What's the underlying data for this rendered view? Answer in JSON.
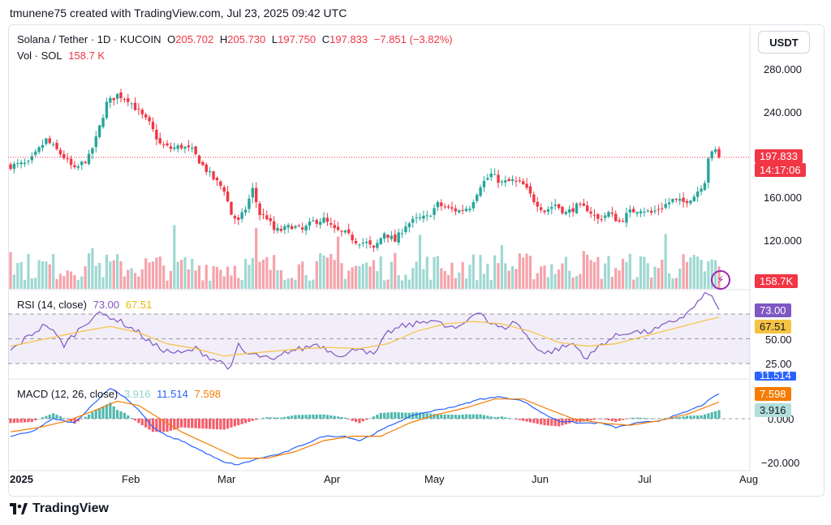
{
  "header": {
    "credit": "tmunene75 created with TradingView.com, Jul 23, 2025 09:42 UTC"
  },
  "price_legend": {
    "symbol": "Solana / Tether · 1D · KUCOIN",
    "o_label": "O",
    "o_val": "205.702",
    "h_label": "H",
    "h_val": "205.730",
    "l_label": "L",
    "l_val": "197.750",
    "c_label": "C",
    "c_val": "197.833",
    "change": "−7.851 (−3.82%)",
    "vol_label": "Vol · SOL",
    "vol_val": "158.7 K"
  },
  "currency_button": "USDT",
  "rsi_legend": {
    "label": "RSI (14, close)",
    "rsi_val": "73.00",
    "sma_val": "67.51"
  },
  "macd_legend": {
    "label": "MACD (12, 26, close)",
    "hist_val": "3.916",
    "macd_val": "11.514",
    "signal_val": "7.598"
  },
  "price_axis": [
    "280.000",
    "240.000",
    "160.000",
    "120.000"
  ],
  "rsi_axis": [
    "50.00",
    "25.00"
  ],
  "macd_axis": [
    "0.000",
    "−20.000"
  ],
  "time_axis": [
    "2025",
    "Feb",
    "Mar",
    "Apr",
    "May",
    "Jun",
    "Jul",
    "Aug"
  ],
  "tags": {
    "price": "197.833",
    "countdown": "14:17:06",
    "volume": "158.7K",
    "rsi": "73.00",
    "rsi_sma": "67.51",
    "macd": "11.514",
    "signal": "7.598",
    "hist": "3.916"
  },
  "footer": {
    "brand": "TradingView"
  },
  "colors": {
    "up": "#26a69a",
    "down": "#f23645",
    "rsi": "#7e57c2",
    "sma": "#f5c242",
    "macd": "#2962ff",
    "signal": "#f57c00"
  },
  "chart_data": {
    "type": "candlestick",
    "price_anchors": [
      [
        0,
        190
      ],
      [
        5,
        192
      ],
      [
        10,
        214
      ],
      [
        15,
        198
      ],
      [
        18,
        186
      ],
      [
        22,
        198
      ],
      [
        24,
        215
      ],
      [
        27,
        248
      ],
      [
        30,
        256
      ],
      [
        33,
        252
      ],
      [
        36,
        240
      ],
      [
        39,
        229
      ],
      [
        42,
        210
      ],
      [
        45,
        206
      ],
      [
        48,
        208
      ],
      [
        51,
        204
      ],
      [
        54,
        190
      ],
      [
        57,
        178
      ],
      [
        60,
        168
      ],
      [
        62,
        145
      ],
      [
        64,
        138
      ],
      [
        66,
        150
      ],
      [
        68,
        168
      ],
      [
        70,
        145
      ],
      [
        72,
        142
      ],
      [
        74,
        130
      ],
      [
        76,
        130
      ],
      [
        79,
        134
      ],
      [
        82,
        130
      ],
      [
        85,
        138
      ],
      [
        88,
        140
      ],
      [
        91,
        130
      ],
      [
        94,
        127
      ],
      [
        97,
        120
      ],
      [
        100,
        118
      ],
      [
        102,
        112
      ],
      [
        105,
        128
      ],
      [
        108,
        120
      ],
      [
        111,
        135
      ],
      [
        114,
        140
      ],
      [
        117,
        142
      ],
      [
        120,
        154
      ],
      [
        123,
        150
      ],
      [
        126,
        148
      ],
      [
        129,
        152
      ],
      [
        132,
        172
      ],
      [
        135,
        182
      ],
      [
        138,
        174
      ],
      [
        141,
        176
      ],
      [
        144,
        172
      ],
      [
        147,
        158
      ],
      [
        150,
        148
      ],
      [
        153,
        154
      ],
      [
        156,
        146
      ],
      [
        159,
        152
      ],
      [
        162,
        150
      ],
      [
        165,
        140
      ],
      [
        168,
        146
      ],
      [
        171,
        138
      ],
      [
        174,
        147
      ],
      [
        177,
        150
      ],
      [
        180,
        146
      ],
      [
        183,
        152
      ],
      [
        186,
        158
      ],
      [
        189,
        156
      ],
      [
        192,
        162
      ],
      [
        195,
        176
      ],
      [
        196,
        198
      ],
      [
        198,
        204
      ],
      [
        199,
        197.833
      ]
    ],
    "rsi_anchors": [
      [
        0,
        40
      ],
      [
        5,
        52
      ],
      [
        10,
        62
      ],
      [
        15,
        45
      ],
      [
        20,
        60
      ],
      [
        24,
        70
      ],
      [
        28,
        68
      ],
      [
        32,
        62
      ],
      [
        36,
        55
      ],
      [
        40,
        45
      ],
      [
        44,
        40
      ],
      [
        48,
        38
      ],
      [
        52,
        42
      ],
      [
        56,
        35
      ],
      [
        60,
        30
      ],
      [
        62,
        26
      ],
      [
        64,
        45
      ],
      [
        66,
        38
      ],
      [
        70,
        36
      ],
      [
        74,
        32
      ],
      [
        78,
        40
      ],
      [
        82,
        42
      ],
      [
        86,
        46
      ],
      [
        90,
        40
      ],
      [
        94,
        36
      ],
      [
        98,
        44
      ],
      [
        102,
        36
      ],
      [
        106,
        55
      ],
      [
        110,
        60
      ],
      [
        114,
        62
      ],
      [
        118,
        66
      ],
      [
        122,
        60
      ],
      [
        126,
        58
      ],
      [
        130,
        70
      ],
      [
        132,
        73
      ],
      [
        134,
        64
      ],
      [
        138,
        58
      ],
      [
        142,
        64
      ],
      [
        146,
        48
      ],
      [
        150,
        38
      ],
      [
        154,
        42
      ],
      [
        158,
        46
      ],
      [
        162,
        34
      ],
      [
        166,
        46
      ],
      [
        170,
        52
      ],
      [
        174,
        56
      ],
      [
        178,
        55
      ],
      [
        182,
        58
      ],
      [
        186,
        64
      ],
      [
        190,
        70
      ],
      [
        194,
        82
      ],
      [
        196,
        88
      ],
      [
        199,
        73
      ]
    ],
    "rsi_sma_anchors": [
      [
        0,
        44
      ],
      [
        10,
        50
      ],
      [
        20,
        56
      ],
      [
        28,
        60
      ],
      [
        36,
        55
      ],
      [
        44,
        46
      ],
      [
        52,
        42
      ],
      [
        60,
        36
      ],
      [
        66,
        38
      ],
      [
        74,
        40
      ],
      [
        82,
        42
      ],
      [
        90,
        43
      ],
      [
        98,
        42
      ],
      [
        106,
        46
      ],
      [
        114,
        56
      ],
      [
        122,
        62
      ],
      [
        130,
        64
      ],
      [
        138,
        62
      ],
      [
        146,
        56
      ],
      [
        154,
        47
      ],
      [
        162,
        44
      ],
      [
        170,
        46
      ],
      [
        178,
        52
      ],
      [
        186,
        58
      ],
      [
        194,
        64
      ],
      [
        199,
        67.51
      ]
    ],
    "macd_anchors": [
      [
        0,
        -8
      ],
      [
        6,
        -6
      ],
      [
        12,
        0
      ],
      [
        18,
        -2
      ],
      [
        24,
        8
      ],
      [
        28,
        14
      ],
      [
        32,
        10
      ],
      [
        36,
        4
      ],
      [
        40,
        -4
      ],
      [
        44,
        -8
      ],
      [
        48,
        -10
      ],
      [
        54,
        -15
      ],
      [
        60,
        -20
      ],
      [
        64,
        -21
      ],
      [
        70,
        -18
      ],
      [
        76,
        -16
      ],
      [
        82,
        -12
      ],
      [
        88,
        -8
      ],
      [
        94,
        -8
      ],
      [
        98,
        -10
      ],
      [
        102,
        -7
      ],
      [
        108,
        -2
      ],
      [
        114,
        2
      ],
      [
        120,
        4
      ],
      [
        126,
        6
      ],
      [
        132,
        9
      ],
      [
        138,
        10
      ],
      [
        144,
        8
      ],
      [
        150,
        2
      ],
      [
        154,
        -1
      ],
      [
        160,
        -2
      ],
      [
        166,
        -2
      ],
      [
        170,
        -4
      ],
      [
        176,
        -2
      ],
      [
        182,
        -1
      ],
      [
        188,
        2
      ],
      [
        194,
        6
      ],
      [
        199,
        11.514
      ]
    ],
    "signal_anchors": [
      [
        0,
        -6
      ],
      [
        8,
        -4
      ],
      [
        16,
        -1
      ],
      [
        24,
        4
      ],
      [
        30,
        8
      ],
      [
        36,
        6
      ],
      [
        42,
        0
      ],
      [
        48,
        -6
      ],
      [
        56,
        -12
      ],
      [
        64,
        -18
      ],
      [
        72,
        -18
      ],
      [
        80,
        -15
      ],
      [
        88,
        -10
      ],
      [
        96,
        -8
      ],
      [
        104,
        -8
      ],
      [
        112,
        -2
      ],
      [
        120,
        2
      ],
      [
        128,
        5
      ],
      [
        136,
        9
      ],
      [
        144,
        9
      ],
      [
        150,
        5
      ],
      [
        158,
        0
      ],
      [
        166,
        -2
      ],
      [
        174,
        -3
      ],
      [
        182,
        -1
      ],
      [
        190,
        2
      ],
      [
        199,
        7.598
      ]
    ],
    "price_axis_ticks": [
      280,
      240,
      160,
      120
    ],
    "rsi_levels": [
      70,
      50,
      30
    ],
    "macd_axis_ticks": [
      0,
      -20
    ],
    "bars": 200,
    "last_close": 197.833,
    "last_volume_k": 158.7
  }
}
